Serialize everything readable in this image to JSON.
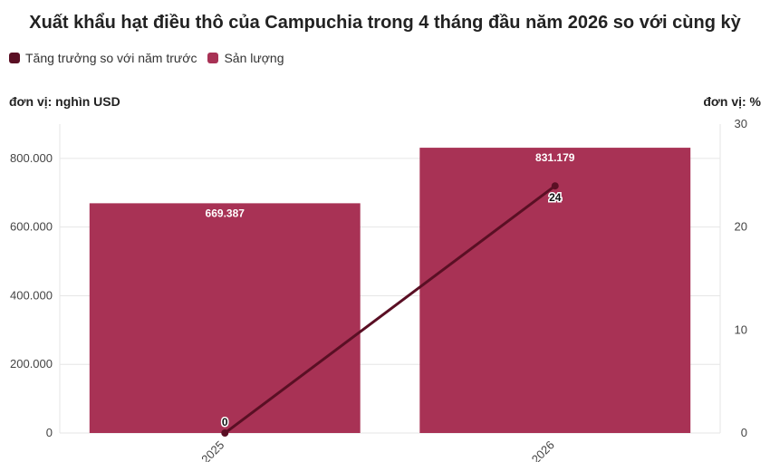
{
  "title": "Xuất khẩu hạt điều thô của Campuchia trong 4 tháng đầu năm 2026 so với cùng kỳ",
  "legend": {
    "growth_label": "Tăng trưởng so với năm trước",
    "volume_label": "Sản lượng"
  },
  "unit_left": "đơn vị: nghìn USD",
  "unit_right": "đơn vị: %",
  "colors": {
    "bar": "#a83255",
    "line": "#5a0f24",
    "grid": "#e6e6e6"
  },
  "chart_data": {
    "type": "bar",
    "categories": [
      "2025",
      "2026"
    ],
    "series": [
      {
        "name": "Sản lượng",
        "type": "bar",
        "axis": "left",
        "values": [
          669387,
          831179
        ],
        "labels": [
          "669.387",
          "831.179"
        ]
      },
      {
        "name": "Tăng trưởng so với năm trước",
        "type": "line",
        "axis": "right",
        "values": [
          0,
          24
        ],
        "labels": [
          "0",
          "24"
        ]
      }
    ],
    "ylim_left": [
      0,
      900000
    ],
    "yticks_left": [
      0,
      200000,
      400000,
      600000,
      800000
    ],
    "ytick_labels_left": [
      "0",
      "200.000",
      "400.000",
      "600.000",
      "800.000"
    ],
    "ylim_right": [
      0,
      30
    ],
    "yticks_right": [
      0,
      10,
      20,
      30
    ],
    "ytick_labels_right": [
      "0",
      "10",
      "20",
      "30"
    ],
    "grid": true,
    "legend_position": "top-left"
  }
}
